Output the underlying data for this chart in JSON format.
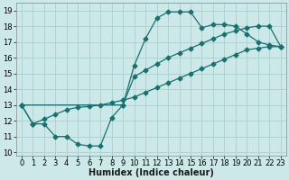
{
  "xlabel": "Humidex (Indice chaleur)",
  "bg_color": "#cce8e8",
  "grid_color": "#aacfcf",
  "line_color": "#1a7070",
  "xlim": [
    -0.5,
    23.5
  ],
  "ylim": [
    9.8,
    19.5
  ],
  "yticks": [
    10,
    11,
    12,
    13,
    14,
    15,
    16,
    17,
    18,
    19
  ],
  "xticks": [
    0,
    1,
    2,
    3,
    4,
    5,
    6,
    7,
    8,
    9,
    10,
    11,
    12,
    13,
    14,
    15,
    16,
    17,
    18,
    19,
    20,
    21,
    22,
    23
  ],
  "line1_x": [
    0,
    1,
    2,
    3,
    4,
    5,
    6,
    7,
    8,
    9,
    10,
    11,
    12,
    13,
    14,
    15,
    16,
    17,
    18,
    19,
    20,
    21,
    22,
    23
  ],
  "line1_y": [
    13.0,
    11.8,
    11.8,
    11.0,
    11.0,
    10.5,
    10.4,
    10.4,
    12.2,
    13.0,
    15.5,
    17.2,
    18.5,
    18.9,
    18.9,
    18.9,
    17.9,
    18.1,
    18.1,
    18.0,
    17.5,
    17.0,
    16.8,
    16.7
  ],
  "line2_x": [
    0,
    1,
    2,
    3,
    4,
    5,
    6,
    7,
    8,
    9,
    10,
    11,
    12,
    13,
    14,
    15,
    16,
    17,
    18,
    19,
    20,
    21,
    22,
    23
  ],
  "line2_y": [
    13.0,
    11.8,
    12.1,
    12.4,
    12.7,
    12.85,
    12.9,
    13.0,
    13.15,
    13.3,
    13.5,
    13.8,
    14.1,
    14.4,
    14.7,
    15.0,
    15.3,
    15.6,
    15.9,
    16.2,
    16.5,
    16.6,
    16.7,
    16.7
  ],
  "line3_x": [
    0,
    9,
    10,
    11,
    12,
    13,
    14,
    15,
    16,
    17,
    18,
    19,
    20,
    21,
    22,
    23
  ],
  "line3_y": [
    13.0,
    13.0,
    14.8,
    15.2,
    15.6,
    16.0,
    16.3,
    16.6,
    16.9,
    17.2,
    17.5,
    17.7,
    17.9,
    18.0,
    18.0,
    16.7
  ],
  "marker_size": 2.5,
  "line_width": 0.9,
  "xlabel_fontsize": 7,
  "tick_fontsize": 6
}
